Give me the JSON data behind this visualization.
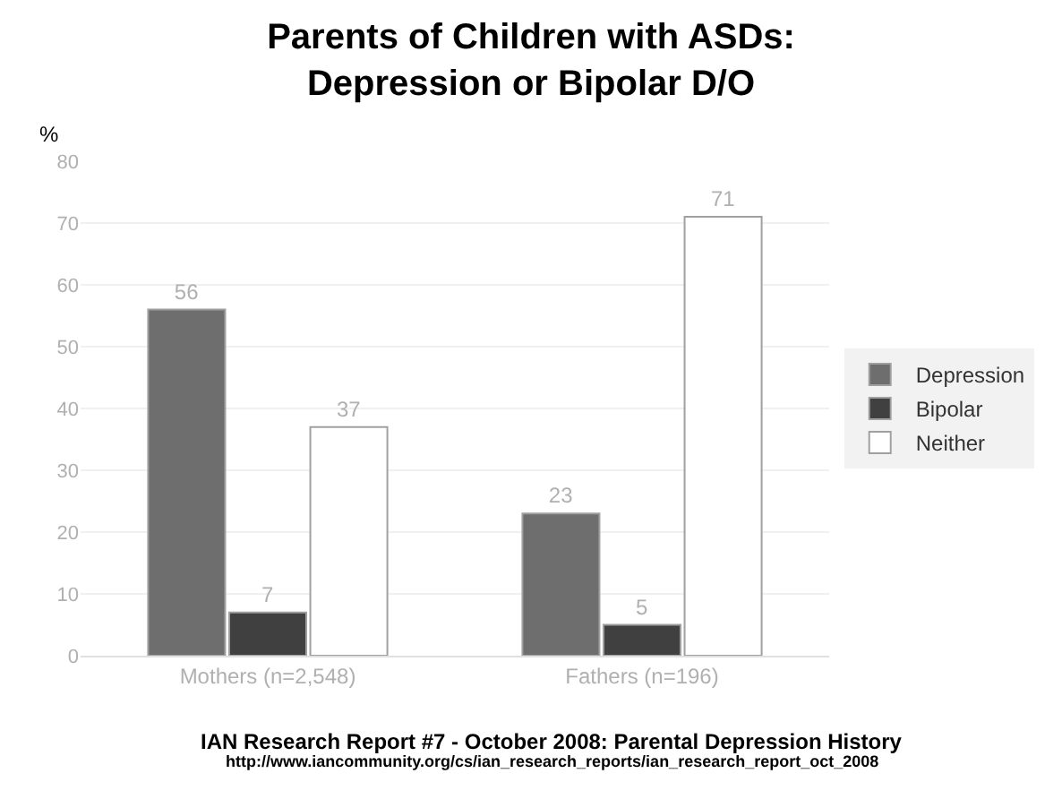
{
  "chart_data": {
    "type": "bar",
    "title": "Parents of Children with ASDs:\nDepression or Bipolar D/O",
    "ylabel": "%",
    "categories": [
      "Mothers (n=2,548)",
      "Fathers (n=196)"
    ],
    "series": [
      {
        "name": "Depression",
        "color": "#6e6e6e",
        "values": [
          56,
          23
        ]
      },
      {
        "name": "Bipolar",
        "color": "#404040",
        "values": [
          7,
          5
        ]
      },
      {
        "name": "Neither",
        "color": "#ffffff",
        "values": [
          37,
          71
        ]
      }
    ],
    "ylim": [
      0,
      80
    ],
    "yticks": [
      0,
      10,
      20,
      30,
      40,
      50,
      60,
      70,
      80
    ],
    "grid": "y",
    "legend": "right",
    "data_labels": true,
    "annotations": [
      "IAN Research Report #7 - October 2008: Parental Depression History",
      "http://www.iancommunity.org/cs/ian_research_reports/ian_research_report_oct_2008"
    ]
  }
}
